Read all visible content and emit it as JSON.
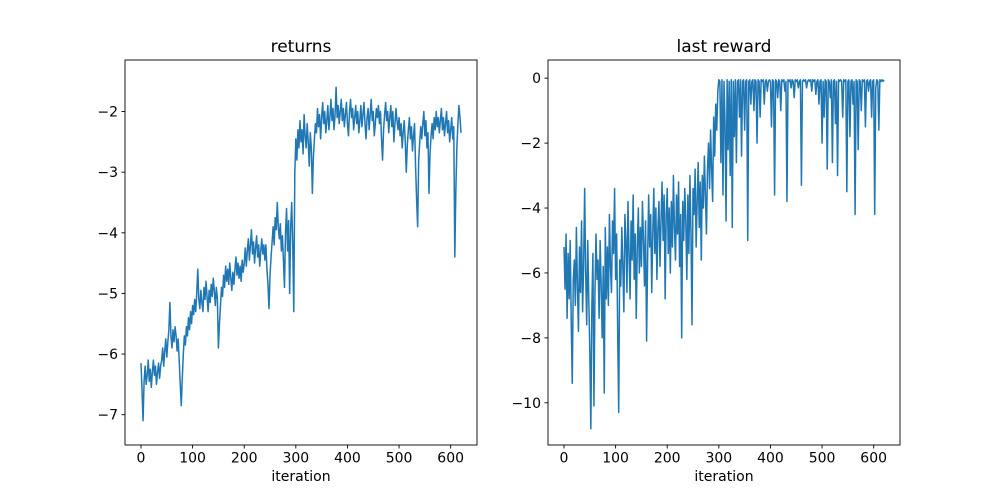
{
  "figure": {
    "background": "#ffffff"
  },
  "chart_data": [
    {
      "id": "returns",
      "type": "line",
      "title": "returns",
      "xlabel": "iteration",
      "ylabel": "",
      "legend": false,
      "grid": false,
      "line_color": "#1f77b4",
      "axis_color": "#000000",
      "xlim": [
        -31,
        651
      ],
      "ylim": [
        -7.5,
        -1.15
      ],
      "xticks": [
        0,
        100,
        200,
        300,
        400,
        500,
        600
      ],
      "yticks": [
        -7,
        -6,
        -5,
        -4,
        -3,
        -2
      ],
      "x_start": 0,
      "x_step": 2,
      "values": [
        -6.15,
        -6.6,
        -7.1,
        -6.45,
        -6.2,
        -6.5,
        -6.35,
        -6.1,
        -6.45,
        -6.25,
        -6.55,
        -6.3,
        -6.1,
        -6.35,
        -6.2,
        -6.5,
        -6.3,
        -6.15,
        -6.4,
        -6.2,
        -6.1,
        -5.9,
        -6.2,
        -5.95,
        -5.75,
        -6.05,
        -5.8,
        -5.6,
        -5.15,
        -5.7,
        -5.9,
        -5.6,
        -5.8,
        -5.55,
        -5.7,
        -5.95,
        -5.75,
        -6.1,
        -6.5,
        -6.85,
        -6.4,
        -6.0,
        -5.7,
        -5.85,
        -5.55,
        -5.7,
        -5.4,
        -5.6,
        -5.3,
        -5.5,
        -5.2,
        -5.35,
        -5.1,
        -5.3,
        -5.0,
        -4.6,
        -5.1,
        -5.25,
        -4.95,
        -5.15,
        -5.3,
        -4.9,
        -5.1,
        -4.8,
        -5.05,
        -5.3,
        -4.95,
        -5.15,
        -4.85,
        -5.05,
        -4.75,
        -4.95,
        -5.2,
        -4.9,
        -5.1,
        -5.9,
        -5.5,
        -5.2,
        -4.9,
        -5.05,
        -4.7,
        -4.9,
        -4.55,
        -4.8,
        -4.6,
        -4.85,
        -4.5,
        -4.75,
        -4.95,
        -4.65,
        -4.85,
        -4.6,
        -4.4,
        -4.7,
        -4.5,
        -4.75,
        -4.55,
        -4.8,
        -4.45,
        -4.65,
        -4.5,
        -4.25,
        -4.55,
        -4.3,
        -4.1,
        -4.45,
        -4.2,
        -3.95,
        -4.35,
        -4.15,
        -4.5,
        -4.25,
        -4.05,
        -4.4,
        -4.2,
        -4.55,
        -4.3,
        -4.1,
        -4.35,
        -4.2,
        -4.45,
        -4.2,
        -4.6,
        -4.85,
        -5.25,
        -4.7,
        -4.4,
        -4.15,
        -3.9,
        -4.2,
        -3.75,
        -3.95,
        -3.5,
        -3.9,
        -4.1,
        -3.85,
        -4.3,
        -4.05,
        -4.45,
        -4.9,
        -4.0,
        -3.6,
        -4.3,
        -3.8,
        -5.0,
        -3.9,
        -3.5,
        -4.2,
        -5.3,
        -3.0,
        -2.45,
        -2.8,
        -2.3,
        -2.6,
        -2.15,
        -2.5,
        -2.3,
        -2.7,
        -2.05,
        -2.4,
        -2.6,
        -2.2,
        -2.5,
        -2.9,
        -2.35,
        -2.6,
        -3.35,
        -2.75,
        -2.45,
        -2.2,
        -2.35,
        -1.95,
        -2.25,
        -2.05,
        -2.45,
        -2.1,
        -1.85,
        -2.2,
        -2.0,
        -2.35,
        -2.15,
        -1.9,
        -2.3,
        -2.1,
        -1.8,
        -2.15,
        -1.95,
        -2.3,
        -2.05,
        -1.6,
        -2.1,
        -1.9,
        -2.2,
        -2.0,
        -1.8,
        -2.15,
        -1.95,
        -2.25,
        -2.05,
        -1.85,
        -2.2,
        -2.4,
        -2.0,
        -1.8,
        -2.1,
        -1.95,
        -2.3,
        -2.1,
        -1.9,
        -2.2,
        -2.0,
        -2.35,
        -2.15,
        -1.9,
        -2.25,
        -2.05,
        -1.85,
        -2.2,
        -2.45,
        -2.1,
        -1.95,
        -2.3,
        -2.05,
        -1.8,
        -2.15,
        -2.0,
        -2.4,
        -2.2,
        -1.95,
        -2.1,
        -1.9,
        -2.2,
        -2.0,
        -2.45,
        -2.8,
        -2.3,
        -2.05,
        -1.85,
        -2.15,
        -2.0,
        -2.35,
        -2.1,
        -1.9,
        -2.25,
        -2.0,
        -2.5,
        -2.2,
        -1.95,
        -2.15,
        -2.3,
        -2.1,
        -2.4,
        -2.2,
        -2.6,
        -2.35,
        -2.15,
        -2.5,
        -3.0,
        -2.55,
        -2.3,
        -2.1,
        -2.45,
        -2.25,
        -2.65,
        -2.4,
        -2.2,
        -2.9,
        -3.45,
        -3.9,
        -2.8,
        -2.5,
        -2.25,
        -2.45,
        -2.2,
        -2.0,
        -2.4,
        -2.15,
        -2.6,
        -2.35,
        -3.35,
        -2.7,
        -2.4,
        -2.2,
        -2.45,
        -2.1,
        -2.3,
        -2.0,
        -2.25,
        -2.1,
        -2.35,
        -2.15,
        -1.95,
        -2.3,
        -2.1,
        -2.4,
        -2.2,
        -2.0,
        -2.35,
        -2.15,
        -2.5,
        -2.3,
        -2.1,
        -2.45,
        -2.25,
        -4.4,
        -3.3,
        -2.6,
        -2.2,
        -1.9,
        -2.1,
        -2.35
      ]
    },
    {
      "id": "last-reward",
      "type": "line",
      "title": "last reward",
      "xlabel": "iteration",
      "ylabel": "",
      "legend": false,
      "grid": false,
      "line_color": "#1f77b4",
      "axis_color": "#000000",
      "xlim": [
        -31,
        651
      ],
      "ylim": [
        -11.3,
        0.56
      ],
      "xticks": [
        0,
        100,
        200,
        300,
        400,
        500,
        600
      ],
      "yticks": [
        -10,
        -8,
        -6,
        -4,
        -2,
        0
      ],
      "x_start": 0,
      "x_step": 2,
      "values": [
        -5.2,
        -6.5,
        -4.8,
        -7.4,
        -5.4,
        -6.8,
        -5.0,
        -7.5,
        -9.4,
        -6.2,
        -5.6,
        -7.0,
        -4.6,
        -6.4,
        -7.8,
        -5.2,
        -6.6,
        -4.4,
        -7.2,
        -5.8,
        -3.4,
        -6.0,
        -7.6,
        -5.0,
        -6.8,
        -8.4,
        -10.8,
        -7.0,
        -5.4,
        -10.1,
        -6.6,
        -4.8,
        -6.2,
        -5.6,
        -7.4,
        -5.0,
        -6.4,
        -8.0,
        -5.8,
        -9.7,
        -4.6,
        -6.8,
        -5.2,
        -7.0,
        -4.2,
        -5.8,
        -6.6,
        -4.4,
        -5.4,
        -3.4,
        -6.2,
        -4.8,
        -7.8,
        -10.3,
        -5.6,
        -6.4,
        -4.6,
        -5.8,
        -7.2,
        -4.2,
        -5.0,
        -6.6,
        -3.8,
        -5.4,
        -6.8,
        -4.4,
        -5.6,
        -3.6,
        -6.2,
        -4.8,
        -7.4,
        -5.2,
        -4.0,
        -6.0,
        -4.6,
        -5.8,
        -3.8,
        -5.0,
        -6.4,
        -4.4,
        -8.1,
        -5.6,
        -3.6,
        -5.2,
        -4.2,
        -6.6,
        -4.8,
        -3.4,
        -5.4,
        -4.0,
        -6.2,
        -4.6,
        -3.8,
        -5.8,
        -4.4,
        -3.2,
        -5.0,
        -3.6,
        -6.8,
        -4.2,
        -3.4,
        -5.4,
        -4.0,
        -6.0,
        -3.8,
        -5.2,
        -3.0,
        -4.6,
        -5.6,
        -3.6,
        -4.8,
        -3.2,
        -5.8,
        -4.2,
        -8.0,
        -3.8,
        -5.0,
        -3.4,
        -4.4,
        -6.2,
        -3.6,
        -5.4,
        -3.0,
        -4.8,
        -7.6,
        -3.4,
        -4.2,
        -2.8,
        -5.2,
        -3.8,
        -2.6,
        -4.6,
        -3.2,
        -5.6,
        -3.0,
        -4.0,
        -2.4,
        -3.6,
        -4.8,
        -2.8,
        -2.0,
        -3.4,
        -1.6,
        -2.8,
        -3.8,
        -1.2,
        -2.4,
        -0.8,
        -1.6,
        -0.4,
        -0.05,
        -0.1,
        -2.6,
        -0.05,
        -3.6,
        -0.1,
        -1.4,
        -4.4,
        -0.05,
        -2.2,
        -0.1,
        -3.0,
        -0.05,
        -4.6,
        -0.1,
        -1.8,
        -0.05,
        -2.6,
        -0.1,
        -0.05,
        -1.2,
        -0.05,
        -2.4,
        -0.1,
        -0.05,
        -1.6,
        -0.1,
        -0.05,
        -5.0,
        -0.1,
        -0.05,
        -0.8,
        -0.1,
        -0.05,
        -1.0,
        -0.05,
        -0.1,
        -2.0,
        -0.05,
        -0.1,
        -1.2,
        -0.05,
        -0.1,
        -0.05,
        -0.8,
        -0.1,
        -0.05,
        -0.4,
        -0.1,
        -0.05,
        -0.1,
        -1.5,
        -0.05,
        -0.1,
        -3.6,
        -0.05,
        -0.1,
        -0.6,
        -0.05,
        -0.1,
        -1.0,
        -0.05,
        -0.1,
        -0.05,
        -0.4,
        -0.1,
        -3.8,
        -0.05,
        -0.1,
        -0.05,
        -0.3,
        -0.05,
        -0.1,
        -0.6,
        -0.05,
        -0.1,
        -0.05,
        -0.3,
        -0.1,
        -0.05,
        -3.3,
        -0.1,
        -0.05,
        -0.1,
        -0.05,
        -0.3,
        -0.1,
        -0.05,
        -0.1,
        -0.05,
        -0.4,
        -0.05,
        -0.1,
        -0.05,
        -0.5,
        -0.1,
        -0.05,
        -0.8,
        -0.1,
        -0.05,
        -2.0,
        -0.1,
        -1.2,
        -0.05,
        -0.1,
        -2.8,
        -0.05,
        -0.1,
        -0.6,
        -0.05,
        -2.6,
        -0.1,
        -0.05,
        -1.4,
        -0.1,
        -3.0,
        -0.05,
        -0.1,
        -0.05,
        -0.1,
        -1.2,
        -0.05,
        -0.1,
        -0.05,
        -3.5,
        -0.1,
        -0.05,
        -1.8,
        -0.1,
        -0.05,
        -0.8,
        -0.1,
        -4.2,
        -0.05,
        -0.1,
        -2.2,
        -0.05,
        -0.1,
        -1.0,
        -0.05,
        -0.1,
        -0.05,
        -1.5,
        -0.1,
        -0.05,
        -0.4,
        -0.1,
        -0.05,
        -1.2,
        -0.1,
        -0.05,
        -4.2,
        -0.3,
        -0.05,
        -0.1,
        -1.6,
        -0.05,
        -0.1,
        -0.05,
        -0.1,
        -0.05
      ]
    }
  ]
}
